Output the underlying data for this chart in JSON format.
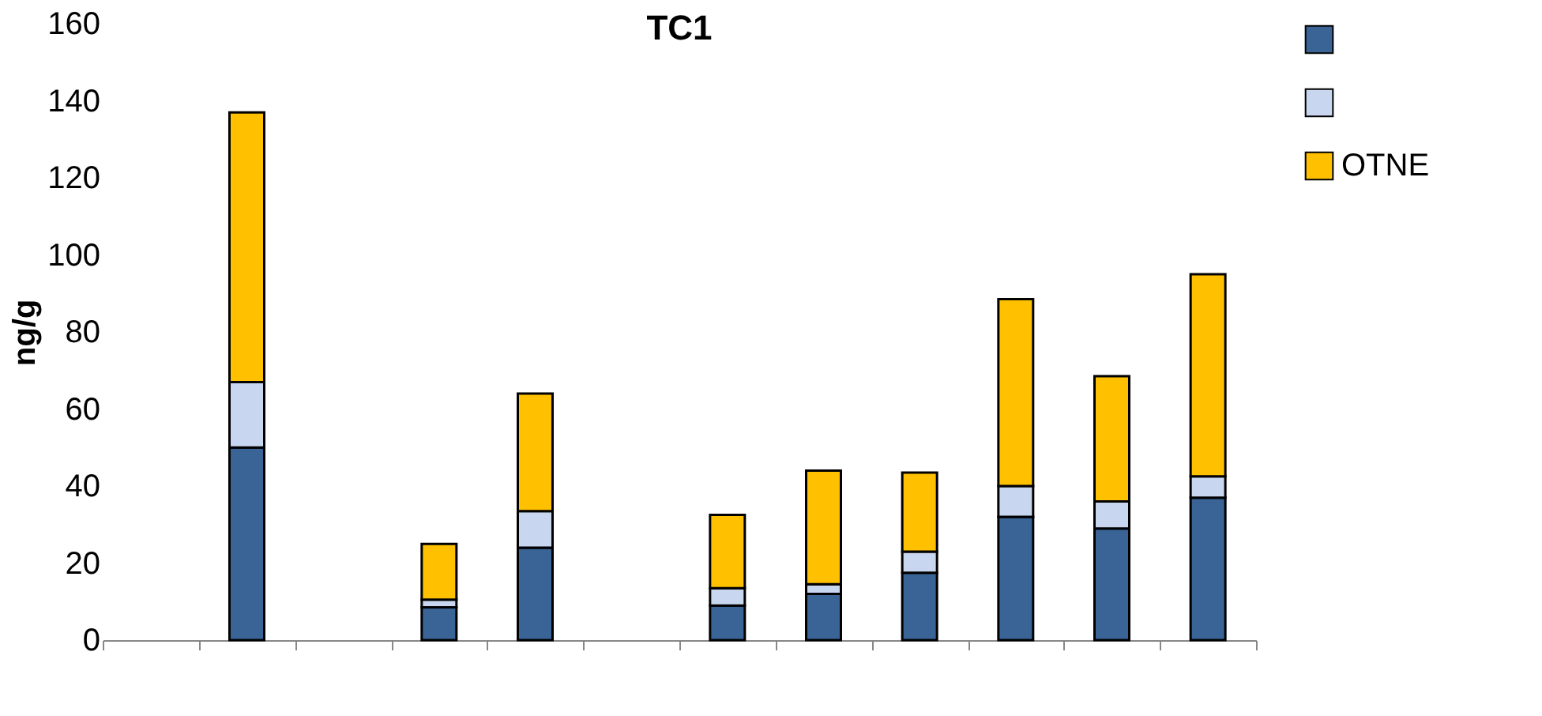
{
  "chart_data": {
    "type": "bar",
    "stacked": true,
    "title": "TC1",
    "ylabel": "ng/g",
    "categories": [
      null,
      null,
      null,
      null,
      null,
      null,
      null,
      null,
      null,
      null,
      null,
      null
    ],
    "series": [
      {
        "color": "#3a6496",
        "values": [
          null,
          50,
          null,
          8.5,
          24,
          null,
          9,
          12,
          17.5,
          32,
          29,
          37
        ]
      },
      {
        "color": "#c9d6ef",
        "values": [
          null,
          17,
          null,
          2,
          9.5,
          null,
          4.5,
          2.5,
          5.5,
          8,
          7,
          5.5
        ]
      },
      {
        "name": "OTNE",
        "color": "#ffc000",
        "values": [
          null,
          70,
          null,
          14.5,
          30.5,
          null,
          19,
          29.5,
          20.5,
          48.5,
          32.5,
          52.5
        ]
      }
    ],
    "ylim": [
      0,
      160
    ],
    "yticks": [
      0,
      20,
      40,
      60,
      80,
      100,
      120,
      140,
      160
    ],
    "grid": false,
    "legend": "right",
    "tick_labels": "y"
  }
}
